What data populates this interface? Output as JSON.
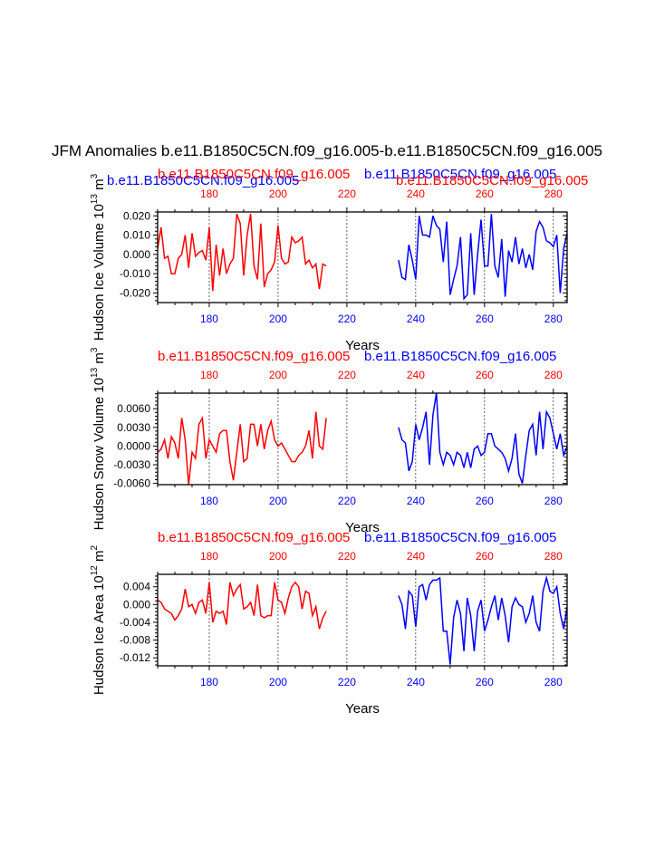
{
  "title": "JFM Anomalies b.e11.B1850C5CN.f09_g16.005-b.e11.B1850C5CN.f09_g16.005",
  "colors": {
    "case1": "#ff0000",
    "case2": "#0000ff",
    "axes": "#000000",
    "grid": "#000000"
  },
  "chart_data": [
    {
      "type": "line",
      "panel": "ice-volume",
      "ylabel": "Hudson Ice Volume 10",
      "ylabel_exp1": "13",
      "ylabel_unit": " m",
      "ylabel_exp2": "3",
      "xlabel": "Years",
      "case1_label": "b.e11.B1850C5CN.f09_g16.005",
      "case2_label": "b.e11.B1850C5CN.f09_g16.005",
      "xlim": [
        165,
        284
      ],
      "ylim": [
        -0.025,
        0.022
      ],
      "yticks": [
        -0.02,
        -0.01,
        0.0,
        0.01,
        0.02
      ],
      "ytick_labels": [
        "-0.020",
        "-0.010",
        "0.000",
        "0.010",
        "0.020"
      ],
      "xticks": [
        180,
        200,
        220,
        240,
        260,
        280
      ],
      "xtick_labels": [
        "180",
        "200",
        "220",
        "240",
        "260",
        "280"
      ],
      "series": [
        {
          "name": "b.e11.B1850C5CN.f09_g16.005",
          "color": "#ff0000",
          "x": [
            165,
            166,
            167,
            168,
            169,
            170,
            171,
            172,
            173,
            174,
            175,
            176,
            177,
            178,
            179,
            180,
            181,
            182,
            183,
            184,
            185,
            186,
            187,
            188,
            189,
            190,
            191,
            192,
            193,
            194,
            195,
            196,
            197,
            198,
            199,
            200,
            201,
            202,
            203,
            204,
            205,
            206,
            207,
            208,
            209,
            210,
            211,
            212,
            213,
            214
          ],
          "values": [
            0.003,
            0.014,
            -0.002,
            -0.001,
            -0.01,
            -0.01,
            -0.002,
            0.0,
            0.01,
            -0.007,
            0.011,
            -0.001,
            0.001,
            0.002,
            -0.003,
            0.014,
            -0.019,
            0.005,
            -0.011,
            0.003,
            -0.01,
            -0.005,
            -0.002,
            0.021,
            0.016,
            -0.011,
            0.01,
            0.021,
            -0.006,
            -0.013,
            0.016,
            -0.017,
            -0.01,
            -0.008,
            -0.004,
            0.015,
            -0.002,
            -0.005,
            -0.004,
            0.009,
            0.006,
            0.007,
            0.009,
            -0.005,
            -0.003,
            -0.007,
            -0.005,
            -0.018,
            -0.005,
            -0.006
          ]
        },
        {
          "name": "b.e11.B1850C5CN.f09_g16.005",
          "color": "#0000ff",
          "x": [
            235,
            236,
            237,
            238,
            239,
            240,
            241,
            242,
            243,
            244,
            245,
            246,
            247,
            248,
            249,
            250,
            251,
            252,
            253,
            254,
            255,
            256,
            257,
            258,
            259,
            260,
            261,
            262,
            263,
            264,
            265,
            266,
            267,
            268,
            269,
            270,
            271,
            272,
            273,
            274,
            275,
            276,
            277,
            278,
            279,
            280,
            281,
            282,
            283,
            284
          ],
          "values": [
            -0.003,
            -0.012,
            -0.013,
            0.005,
            -0.003,
            -0.013,
            0.02,
            0.01,
            0.01,
            0.009,
            0.02,
            0.015,
            0.013,
            -0.004,
            0.017,
            -0.021,
            -0.013,
            -0.006,
            0.009,
            -0.023,
            -0.021,
            0.011,
            -0.021,
            0.0,
            0.018,
            -0.006,
            -0.006,
            0.021,
            -0.006,
            -0.012,
            0.008,
            -0.022,
            0.002,
            -0.004,
            0.009,
            -0.005,
            0.003,
            -0.007,
            0.0,
            -0.008,
            0.012,
            0.017,
            0.014,
            0.007,
            0.006,
            0.004,
            0.01,
            -0.02,
            0.003,
            0.011
          ]
        }
      ]
    },
    {
      "type": "line",
      "panel": "snow-volume",
      "ylabel": "Hudson Snow Volume 10",
      "ylabel_exp1": "13",
      "ylabel_unit": " m",
      "ylabel_exp2": "3",
      "xlabel": "Years",
      "case1_label": "b.e11.B1850C5CN.f09_g16.005",
      "case2_label": "b.e11.B1850C5CN.f09_g16.005",
      "xlim": [
        165,
        284
      ],
      "ylim": [
        -0.0062,
        0.0085
      ],
      "yticks": [
        -0.006,
        -0.003,
        0.0,
        0.003,
        0.006
      ],
      "ytick_labels": [
        "-0.0060",
        "-0.0030",
        "0.0000",
        "0.0030",
        "0.0060"
      ],
      "xticks": [
        180,
        200,
        220,
        240,
        260,
        280
      ],
      "xtick_labels": [
        "180",
        "200",
        "220",
        "240",
        "260",
        "280"
      ],
      "series": [
        {
          "name": "b.e11.B1850C5CN.f09_g16.005",
          "color": "#ff0000",
          "x": [
            165,
            166,
            167,
            168,
            169,
            170,
            171,
            172,
            173,
            174,
            175,
            176,
            177,
            178,
            179,
            180,
            181,
            182,
            183,
            184,
            185,
            186,
            187,
            188,
            189,
            190,
            191,
            192,
            193,
            194,
            195,
            196,
            197,
            198,
            199,
            200,
            201,
            202,
            203,
            204,
            205,
            206,
            207,
            208,
            209,
            210,
            211,
            212,
            213,
            214
          ],
          "values": [
            -0.001,
            -0.0005,
            0.001,
            -0.002,
            0.0015,
            0.0005,
            -0.002,
            0.0045,
            0.001,
            -0.0062,
            -0.001,
            -0.002,
            0.0035,
            0.0045,
            -0.002,
            0.001,
            0.0,
            -0.001,
            0.002,
            0.0025,
            0.0025,
            -0.0025,
            -0.0055,
            -0.001,
            0.0035,
            -0.0025,
            -0.002,
            0.0035,
            0.0035,
            0.0,
            0.0035,
            -0.0005,
            0.0025,
            0.004,
            0.001,
            0.0,
            0.0005,
            -0.0005,
            -0.0015,
            -0.0025,
            -0.0025,
            -0.0015,
            -0.001,
            0.0,
            0.0025,
            -0.002,
            0.0055,
            0.0,
            -0.0005,
            0.0045
          ]
        },
        {
          "name": "b.e11.B1850C5CN.f09_g16.005",
          "color": "#0000ff",
          "x": [
            235,
            236,
            237,
            238,
            239,
            240,
            241,
            242,
            243,
            244,
            245,
            246,
            247,
            248,
            249,
            250,
            251,
            252,
            253,
            254,
            255,
            256,
            257,
            258,
            259,
            260,
            261,
            262,
            263,
            264,
            265,
            266,
            267,
            268,
            269,
            270,
            271,
            272,
            273,
            274,
            275,
            276,
            277,
            278,
            279,
            280,
            281,
            282,
            283,
            284
          ],
          "values": [
            0.003,
            0.001,
            0.0005,
            -0.004,
            -0.0025,
            0.0035,
            0.001,
            0.003,
            0.0055,
            -0.003,
            0.005,
            0.0085,
            -0.001,
            -0.003,
            -0.001,
            -0.0015,
            -0.003,
            -0.001,
            -0.0015,
            -0.0035,
            -0.001,
            -0.0035,
            -0.0005,
            0.0,
            -0.0015,
            -0.001,
            0.002,
            0.002,
            0.0,
            -0.0005,
            -0.001,
            -0.002,
            -0.004,
            -0.002,
            0.002,
            -0.0045,
            -0.006,
            -0.0015,
            0.0025,
            0.0035,
            -0.0015,
            0.0055,
            -0.0005,
            0.0055,
            0.0045,
            0.002,
            -0.0005,
            0.002,
            -0.0015,
            0.0
          ]
        }
      ]
    },
    {
      "type": "line",
      "panel": "ice-area",
      "ylabel": "Hudson Ice Area 10",
      "ylabel_exp1": "12",
      "ylabel_unit": " m",
      "ylabel_exp2": "2",
      "xlabel": "Years",
      "case1_label": "b.e11.B1850C5CN.f09_g16.005",
      "case2_label": "b.e11.B1850C5CN.f09_g16.005",
      "xlim": [
        165,
        284
      ],
      "ylim": [
        -0.0138,
        0.0068
      ],
      "yticks": [
        -0.012,
        -0.008,
        -0.004,
        0.0,
        0.004
      ],
      "ytick_labels": [
        "-0.012",
        "-0.008",
        "-0.004",
        "0.000",
        "0.004"
      ],
      "xticks": [
        180,
        200,
        220,
        240,
        260,
        280
      ],
      "xtick_labels": [
        "180",
        "200",
        "220",
        "240",
        "260",
        "280"
      ],
      "series": [
        {
          "name": "b.e11.B1850C5CN.f09_g16.005",
          "color": "#ff0000",
          "x": [
            165,
            166,
            167,
            168,
            169,
            170,
            171,
            172,
            173,
            174,
            175,
            176,
            177,
            178,
            179,
            180,
            181,
            182,
            183,
            184,
            185,
            186,
            187,
            188,
            189,
            190,
            191,
            192,
            193,
            194,
            195,
            196,
            197,
            198,
            199,
            200,
            201,
            202,
            203,
            204,
            205,
            206,
            207,
            208,
            209,
            210,
            211,
            212,
            213,
            214
          ],
          "values": [
            0.001,
            0.0005,
            -0.001,
            -0.0015,
            -0.002,
            -0.0035,
            -0.0025,
            -0.001,
            0.0035,
            -0.0005,
            0.0,
            -0.002,
            0.0005,
            0.001,
            -0.002,
            0.005,
            -0.004,
            -0.0015,
            -0.002,
            -0.0015,
            -0.0045,
            0.005,
            0.002,
            0.0035,
            0.0045,
            -0.001,
            -0.0005,
            0.0005,
            -0.0025,
            0.0045,
            -0.0025,
            -0.003,
            -0.0025,
            -0.0025,
            0.005,
            0.001,
            0.0005,
            -0.002,
            0.0015,
            0.004,
            0.005,
            0.004,
            -0.001,
            0.003,
            0.0025,
            -0.0025,
            -0.0005,
            -0.0055,
            -0.003,
            -0.0015
          ]
        },
        {
          "name": "b.e11.B1850C5CN.f09_g16.005",
          "color": "#0000ff",
          "x": [
            235,
            236,
            237,
            238,
            239,
            240,
            241,
            242,
            243,
            244,
            245,
            246,
            247,
            248,
            249,
            250,
            251,
            252,
            253,
            254,
            255,
            256,
            257,
            258,
            259,
            260,
            261,
            262,
            263,
            264,
            265,
            266,
            267,
            268,
            269,
            270,
            271,
            272,
            273,
            274,
            275,
            276,
            277,
            278,
            279,
            280,
            281,
            282,
            283,
            284
          ],
          "values": [
            0.002,
            0.0,
            -0.0055,
            0.003,
            0.002,
            -0.005,
            0.004,
            0.0045,
            0.001,
            0.0045,
            0.0055,
            0.0055,
            0.006,
            -0.006,
            -0.006,
            -0.0135,
            -0.003,
            0.001,
            -0.002,
            -0.0105,
            0.0015,
            -0.0025,
            -0.0105,
            -0.0015,
            0.001,
            -0.006,
            -0.0035,
            -0.0005,
            0.002,
            -0.0035,
            0.0015,
            -0.0025,
            -0.0085,
            -0.0005,
            0.0015,
            0.0,
            -0.0005,
            -0.004,
            -0.002,
            0.002,
            -0.004,
            -0.006,
            0.003,
            0.006,
            0.003,
            0.0025,
            0.004,
            -0.002,
            -0.0055,
            -0.0005
          ]
        }
      ]
    }
  ]
}
